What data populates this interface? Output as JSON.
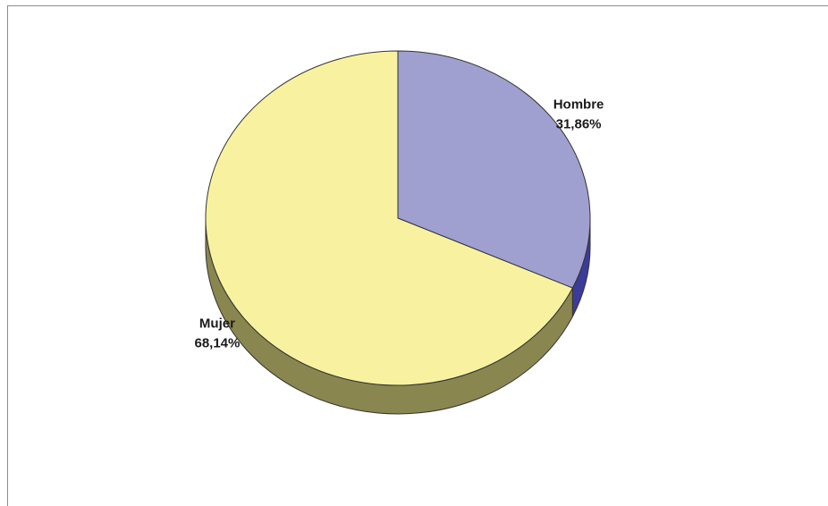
{
  "chart_data": {
    "type": "pie",
    "title": "",
    "slices": [
      {
        "label": "Hombre",
        "value": 31.86,
        "value_label": "31,86%",
        "color": "#9f9fd0",
        "side_color": "#3b3b9a"
      },
      {
        "label": "Mujer",
        "value": 68.14,
        "value_label": "68,14%",
        "color": "#f8f2a0",
        "side_color": "#8a8650"
      }
    ],
    "start_angle": "12 o'clock",
    "direction": "clockwise",
    "style": "3d-tilted",
    "legend": "none",
    "background": "#ffffff",
    "edge_color": "#333333"
  }
}
